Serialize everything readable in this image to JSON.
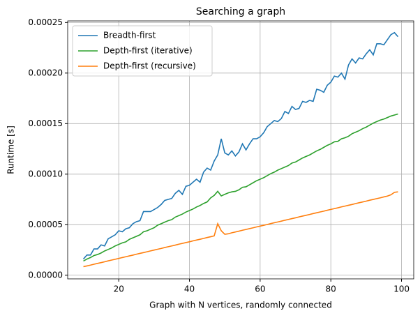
{
  "chart_data": {
    "type": "line",
    "title": "Searching a graph",
    "x_label": "Graph with N vertices, randomly connected",
    "y_label": "Runtime [s]",
    "x": [
      10,
      11,
      12,
      13,
      14,
      15,
      16,
      17,
      18,
      19,
      20,
      21,
      22,
      23,
      24,
      25,
      26,
      27,
      28,
      29,
      30,
      31,
      32,
      33,
      34,
      35,
      36,
      37,
      38,
      39,
      40,
      41,
      42,
      43,
      44,
      45,
      46,
      47,
      48,
      49,
      50,
      51,
      52,
      53,
      54,
      55,
      56,
      57,
      58,
      59,
      60,
      61,
      62,
      63,
      64,
      65,
      66,
      67,
      68,
      69,
      70,
      71,
      72,
      73,
      74,
      75,
      76,
      77,
      78,
      79,
      80,
      81,
      82,
      83,
      84,
      85,
      86,
      87,
      88,
      89,
      90,
      91,
      92,
      93,
      94,
      95,
      96,
      97,
      98,
      99
    ],
    "series": [
      {
        "name": "Breadth-first",
        "color": "#1f77b4",
        "values": [
          1.6e-05,
          2e-05,
          2e-05,
          2.6e-05,
          2.6e-05,
          3e-05,
          2.9e-05,
          3.6e-05,
          3.8e-05,
          4e-05,
          4.4e-05,
          4.3e-05,
          4.6e-05,
          4.7e-05,
          5.1e-05,
          5.3e-05,
          5.4e-05,
          6.3e-05,
          6.3e-05,
          6.3e-05,
          6.5e-05,
          6.7e-05,
          7e-05,
          7.4e-05,
          7.5e-05,
          7.6e-05,
          8.1e-05,
          8.4e-05,
          8e-05,
          8.8e-05,
          8.9e-05,
          9.2e-05,
          9.5e-05,
          9.2e-05,
          0.000102,
          0.000106,
          0.000104,
          0.000113,
          0.000119,
          0.000135,
          0.000121,
          0.000119,
          0.000123,
          0.000118,
          0.000122,
          0.00013,
          0.000124,
          0.00013,
          0.000135,
          0.000135,
          0.000137,
          0.000141,
          0.000147,
          0.00015,
          0.000153,
          0.000152,
          0.000155,
          0.000162,
          0.00016,
          0.000167,
          0.000164,
          0.000165,
          0.000172,
          0.000171,
          0.000173,
          0.000172,
          0.000184,
          0.000183,
          0.000181,
          0.000188,
          0.000191,
          0.000197,
          0.000196,
          0.0002,
          0.000194,
          0.000208,
          0.000214,
          0.00021,
          0.000215,
          0.000214,
          0.000219,
          0.000223,
          0.000218,
          0.000229,
          0.000229,
          0.000228,
          0.000233,
          0.000238,
          0.00024,
          0.000236
        ]
      },
      {
        "name": "Depth-first (iterative)",
        "color": "#2ca02c",
        "values": [
          1.4e-05,
          1.6e-05,
          1.75e-05,
          1.95e-05,
          2.05e-05,
          2.2e-05,
          2.4e-05,
          2.55e-05,
          2.7e-05,
          2.9e-05,
          3.05e-05,
          3.2e-05,
          3.3e-05,
          3.55e-05,
          3.7e-05,
          3.85e-05,
          4e-05,
          4.3e-05,
          4.4e-05,
          4.55e-05,
          4.7e-05,
          4.95e-05,
          5.1e-05,
          5.25e-05,
          5.4e-05,
          5.5e-05,
          5.75e-05,
          5.9e-05,
          6.05e-05,
          6.25e-05,
          6.4e-05,
          6.55e-05,
          6.75e-05,
          6.9e-05,
          7.1e-05,
          7.25e-05,
          7.65e-05,
          7.9e-05,
          8.3e-05,
          7.85e-05,
          8e-05,
          8.15e-05,
          8.25e-05,
          8.3e-05,
          8.45e-05,
          8.7e-05,
          8.75e-05,
          8.95e-05,
          9.15e-05,
          9.35e-05,
          9.5e-05,
          9.65e-05,
          9.85e-05,
          0.0001005,
          0.000102,
          0.000104,
          0.0001055,
          0.000107,
          0.0001085,
          0.000111,
          0.000112,
          0.000114,
          0.000116,
          0.0001175,
          0.000119,
          0.000121,
          0.000123,
          0.0001245,
          0.0001265,
          0.0001285,
          0.00013,
          0.000132,
          0.0001325,
          0.000135,
          0.000136,
          0.0001375,
          0.00014,
          0.0001415,
          0.000143,
          0.000145,
          0.0001465,
          0.0001485,
          0.0001505,
          0.000152,
          0.0001535,
          0.0001545,
          0.000156,
          0.0001575,
          0.0001585,
          0.0001595
        ]
      },
      {
        "name": "Depth-first (recursive)",
        "color": "#ff7f0e",
        "values": [
          8.5e-06,
          9.2e-06,
          1e-05,
          1.09e-05,
          1.17e-05,
          1.25e-05,
          1.33e-05,
          1.42e-05,
          1.5e-05,
          1.58e-05,
          1.66e-05,
          1.75e-05,
          1.83e-05,
          1.91e-05,
          1.99e-05,
          2.08e-05,
          2.16e-05,
          2.24e-05,
          2.32e-05,
          2.41e-05,
          2.49e-05,
          2.57e-05,
          2.65e-05,
          2.74e-05,
          2.82e-05,
          2.9e-05,
          2.98e-05,
          3.07e-05,
          3.15e-05,
          3.23e-05,
          3.31e-05,
          3.4e-05,
          3.48e-05,
          3.56e-05,
          3.64e-05,
          3.73e-05,
          3.81e-05,
          3.89e-05,
          5.1e-05,
          4.4e-05,
          4.05e-05,
          4.1e-05,
          4.2e-05,
          4.28e-05,
          4.36e-05,
          4.45e-05,
          4.53e-05,
          4.61e-05,
          4.69e-05,
          4.78e-05,
          4.86e-05,
          4.94e-05,
          5.02e-05,
          5.11e-05,
          5.19e-05,
          5.27e-05,
          5.35e-05,
          5.44e-05,
          5.52e-05,
          5.6e-05,
          5.68e-05,
          5.77e-05,
          5.85e-05,
          5.93e-05,
          6.01e-05,
          6.1e-05,
          6.18e-05,
          6.26e-05,
          6.34e-05,
          6.43e-05,
          6.51e-05,
          6.59e-05,
          6.67e-05,
          6.76e-05,
          6.84e-05,
          6.92e-05,
          7e-05,
          7.09e-05,
          7.17e-05,
          7.25e-05,
          7.33e-05,
          7.42e-05,
          7.5e-05,
          7.58e-05,
          7.66e-05,
          7.75e-05,
          7.83e-05,
          7.96e-05,
          8.2e-05,
          8.25e-05
        ]
      }
    ],
    "xlim": [
      5.55,
      103.45
    ],
    "xticks": [
      20,
      40,
      60,
      80,
      100
    ],
    "ylim": [
      -3.6e-06,
      0.0002516
    ],
    "yticks": [
      {
        "value": 0,
        "label": "0.00000"
      },
      {
        "value": 5e-05,
        "label": "0.00005"
      },
      {
        "value": 0.0001,
        "label": "0.00010"
      },
      {
        "value": 0.00015,
        "label": "0.00015"
      },
      {
        "value": 0.0002,
        "label": "0.00020"
      },
      {
        "value": 0.00025,
        "label": "0.00025"
      }
    ],
    "grid": true,
    "legend": "upper left"
  }
}
